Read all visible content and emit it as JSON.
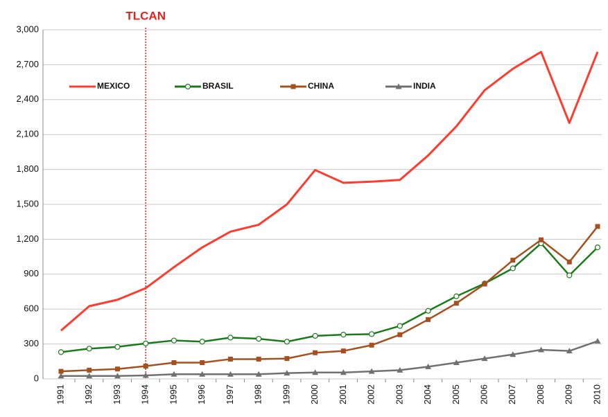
{
  "chart_data": {
    "type": "line",
    "categories": [
      "1991",
      "1992",
      "1993",
      "1994",
      "1995",
      "1996",
      "1997",
      "1998",
      "1999",
      "2000",
      "2001",
      "2002",
      "2003",
      "2004",
      "2005",
      "2006",
      "2007",
      "2008",
      "2009",
      "2010"
    ],
    "series": [
      {
        "name": "MEXICO",
        "color": "#ff3b2f",
        "marker": "none",
        "values": [
          415,
          625,
          680,
          780,
          960,
          1130,
          1265,
          1325,
          1500,
          1795,
          1685,
          1695,
          1710,
          1920,
          2170,
          2480,
          2665,
          2810,
          2200,
          2810
        ]
      },
      {
        "name": "BRASIL",
        "color": "#1a7a1a",
        "marker": "circle",
        "values": [
          230,
          260,
          275,
          305,
          330,
          320,
          355,
          345,
          320,
          370,
          380,
          385,
          455,
          585,
          710,
          820,
          950,
          1165,
          890,
          1130
        ]
      },
      {
        "name": "CHINA",
        "color": "#a5501e",
        "marker": "square",
        "values": [
          65,
          75,
          85,
          110,
          140,
          140,
          170,
          170,
          175,
          225,
          240,
          290,
          380,
          510,
          650,
          815,
          1020,
          1195,
          1005,
          1310
        ]
      },
      {
        "name": "INDIA",
        "color": "#707070",
        "marker": "triangle",
        "values": [
          25,
          25,
          25,
          30,
          40,
          40,
          40,
          40,
          50,
          55,
          55,
          65,
          75,
          105,
          140,
          175,
          210,
          250,
          240,
          325
        ]
      }
    ],
    "ylim": [
      0,
      3000
    ],
    "yticks": [
      0,
      300,
      600,
      900,
      {
        "value": 1200,
        "label": "1,200"
      },
      {
        "value": 1500,
        "label": "1,500"
      },
      {
        "value": 1800,
        "label": "1,800"
      },
      {
        "value": 2100,
        "label": "2,100"
      },
      {
        "value": 2400,
        "label": "2,400"
      },
      {
        "value": 2700,
        "label": "2,700"
      },
      {
        "value": 3000,
        "label": "3,000"
      }
    ],
    "grid": true,
    "annotations": [
      {
        "text": "TLCAN",
        "x": "1994",
        "color": "#e8201a"
      }
    ]
  }
}
